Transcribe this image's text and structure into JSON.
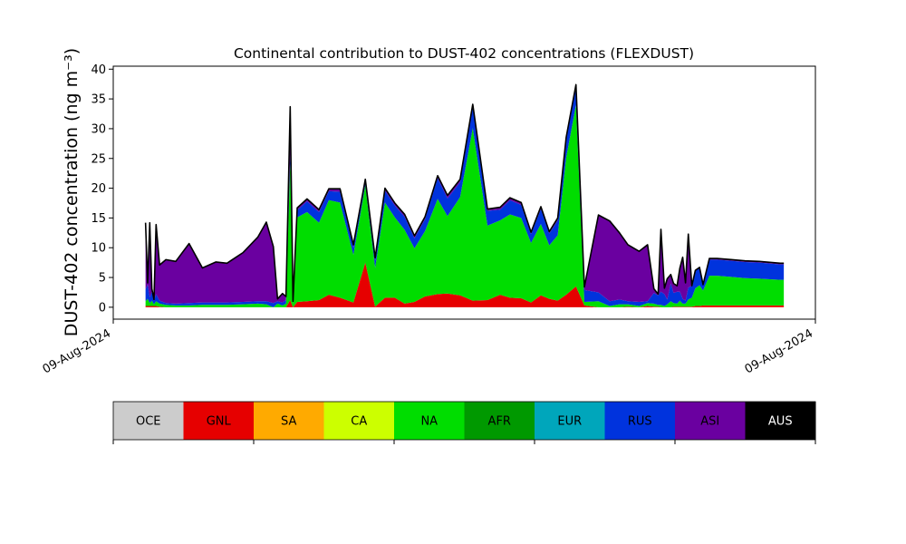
{
  "chart_data": {
    "type": "area",
    "title": "Continental contribution to DUST-402 concentrations (FLEXDUST)",
    "ylabel": "DUST-402 concentration (ng m⁻³)",
    "ylim": [
      -2,
      40.5
    ],
    "yticks": [
      0,
      5,
      10,
      15,
      20,
      25,
      30,
      35,
      40
    ],
    "xlim": [
      0,
      100
    ],
    "xticks": [
      {
        "x": 0,
        "label": "09-Aug-2024"
      },
      {
        "x": 100,
        "label": "09-Aug-2024"
      }
    ],
    "grid": false,
    "x": [
      4.6,
      4.9,
      5.2,
      5.5,
      5.8,
      6.1,
      6.6,
      7.5,
      8.9,
      10.8,
      12.7,
      14.6,
      16.2,
      18.5,
      20.6,
      21.8,
      22.8,
      23.4,
      24.1,
      24.6,
      25.2,
      25.6,
      26.2,
      27.6,
      29.3,
      30.7,
      32.3,
      34.2,
      35.9,
      37.3,
      38.7,
      40.1,
      41.5,
      42.9,
      44.4,
      46.2,
      47.6,
      49.4,
      51.2,
      53.3,
      55.1,
      56.5,
      58.1,
      59.5,
      60.9,
      62.1,
      63.3,
      64.5,
      65.9,
      67.1,
      69.1,
      70.7,
      72.1,
      73.3,
      74.9,
      76.1,
      77.0,
      77.6,
      78.0,
      78.5,
      78.9,
      79.4,
      79.8,
      80.3,
      80.7,
      81.1,
      81.5,
      81.9,
      82.4,
      82.9,
      83.5,
      84.0,
      84.9,
      86.0,
      88.0,
      90.0,
      92.0,
      95.0,
      95.5
    ],
    "series": [
      {
        "name": "GNL",
        "color": "#e60000",
        "values": [
          0.2,
          0.2,
          0.2,
          0.2,
          0.2,
          0.2,
          0.1,
          0.0,
          0.0,
          0.0,
          0.0,
          0.0,
          0.0,
          0.0,
          0.0,
          0.0,
          0.0,
          0.0,
          0.0,
          0.0,
          1.2,
          0.0,
          0.9,
          1.0,
          1.2,
          2.1,
          1.6,
          0.8,
          7.5,
          0.1,
          1.6,
          1.6,
          0.6,
          0.9,
          1.8,
          2.2,
          2.3,
          2.0,
          1.1,
          1.2,
          2.1,
          1.6,
          1.5,
          0.8,
          2.0,
          1.4,
          1.1,
          2.1,
          3.5,
          0.3,
          0.0,
          0.0,
          0.0,
          0.1,
          0.0,
          0.2,
          0.1,
          0.1,
          0.0,
          0.0,
          0.0,
          0.0,
          0.1,
          0.1,
          0.1,
          0.1,
          0.1,
          0.1,
          0.1,
          0.2,
          0.2,
          0.3,
          0.3,
          0.3,
          0.3,
          0.3,
          0.3,
          0.3,
          0.3
        ]
      },
      {
        "name": "NA",
        "color": "#00dd00",
        "values": [
          0.8,
          1.2,
          0.5,
          0.9,
          0.3,
          0.8,
          0.5,
          0.4,
          0.3,
          0.3,
          0.4,
          0.4,
          0.4,
          0.5,
          0.6,
          0.5,
          0.0,
          0.6,
          0.3,
          0.6,
          23.0,
          0.5,
          14.2,
          15.0,
          13.0,
          15.9,
          16.0,
          8.0,
          13.0,
          6.5,
          16.0,
          13.5,
          12.4,
          9.0,
          11.0,
          16.0,
          13.0,
          16.5,
          29.0,
          12.5,
          12.5,
          14.0,
          13.5,
          10.0,
          12.0,
          9.0,
          11.0,
          23.0,
          30.5,
          0.6,
          1.0,
          0.2,
          0.5,
          0.4,
          0.2,
          0.5,
          0.5,
          0.3,
          0.4,
          0.2,
          0.5,
          1.0,
          0.6,
          0.5,
          1.0,
          0.5,
          0.5,
          1.2,
          1.5,
          3.0,
          3.5,
          2.5,
          5.0,
          5.0,
          4.8,
          4.6,
          4.5,
          4.3,
          4.3
        ]
      },
      {
        "name": "RUS",
        "color": "#0033dd",
        "values": [
          2.0,
          2.4,
          1.0,
          1.5,
          0.6,
          1.2,
          0.5,
          0.3,
          0.3,
          0.4,
          0.4,
          0.4,
          0.4,
          0.4,
          0.4,
          0.5,
          0.7,
          0.4,
          0.5,
          0.6,
          1.5,
          0.3,
          1.2,
          1.8,
          1.8,
          1.5,
          1.8,
          1.2,
          0.5,
          1.2,
          2.0,
          2.0,
          2.2,
          1.7,
          2.0,
          3.5,
          3.0,
          2.5,
          3.5,
          2.5,
          1.8,
          2.4,
          2.2,
          1.5,
          2.5,
          2.0,
          2.5,
          3.0,
          3.0,
          2.0,
          1.5,
          0.8,
          0.8,
          0.5,
          0.7,
          0.3,
          1.8,
          1.6,
          2.2,
          2.0,
          0.8,
          3.0,
          1.7,
          2.0,
          1.5,
          0.8,
          0.5,
          2.0,
          2.0,
          3.0,
          3.0,
          1.0,
          2.7,
          2.7,
          2.7,
          2.7,
          2.7,
          2.6,
          2.6
        ]
      },
      {
        "name": "ASI",
        "color": "#6a00a0",
        "values": [
          11.2,
          0.3,
          12.5,
          0.5,
          0.2,
          11.7,
          6.0,
          7.3,
          7.1,
          10.0,
          5.8,
          6.8,
          6.6,
          8.3,
          10.8,
          13.3,
          9.5,
          0.4,
          1.5,
          0.6,
          8.0,
          0.2,
          0.4,
          0.4,
          0.4,
          0.4,
          0.5,
          0.5,
          0.5,
          0.5,
          0.4,
          0.4,
          0.4,
          0.4,
          0.4,
          0.4,
          0.5,
          0.5,
          0.5,
          0.3,
          0.4,
          0.4,
          0.4,
          0.3,
          0.4,
          0.3,
          0.4,
          0.4,
          0.4,
          0.5,
          13.0,
          13.5,
          11.2,
          9.5,
          8.5,
          9.5,
          0.7,
          0.2,
          10.5,
          1.0,
          3.5,
          1.5,
          1.6,
          1.0,
          4.0,
          7.0,
          3.0,
          9.0,
          0.0,
          0.0,
          0.0,
          0.0,
          0.2,
          0.2,
          0.2,
          0.2,
          0.2,
          0.2,
          0.2
        ]
      }
    ],
    "legend": {
      "placement": "bottom",
      "entries": [
        {
          "label": "OCE",
          "color": "#cccccc",
          "text_color": "#000000"
        },
        {
          "label": "GNL",
          "color": "#e60000",
          "text_color": "#000000"
        },
        {
          "label": "SA",
          "color": "#ffaa00",
          "text_color": "#000000"
        },
        {
          "label": "CA",
          "color": "#ccff00",
          "text_color": "#000000"
        },
        {
          "label": "NA",
          "color": "#00dd00",
          "text_color": "#000000"
        },
        {
          "label": "AFR",
          "color": "#009900",
          "text_color": "#000000"
        },
        {
          "label": "EUR",
          "color": "#00a6bb",
          "text_color": "#000000"
        },
        {
          "label": "RUS",
          "color": "#0033dd",
          "text_color": "#000000"
        },
        {
          "label": "ASI",
          "color": "#6a00a0",
          "text_color": "#000000"
        },
        {
          "label": "AUS",
          "color": "#000000",
          "text_color": "#ffffff"
        }
      ]
    }
  }
}
